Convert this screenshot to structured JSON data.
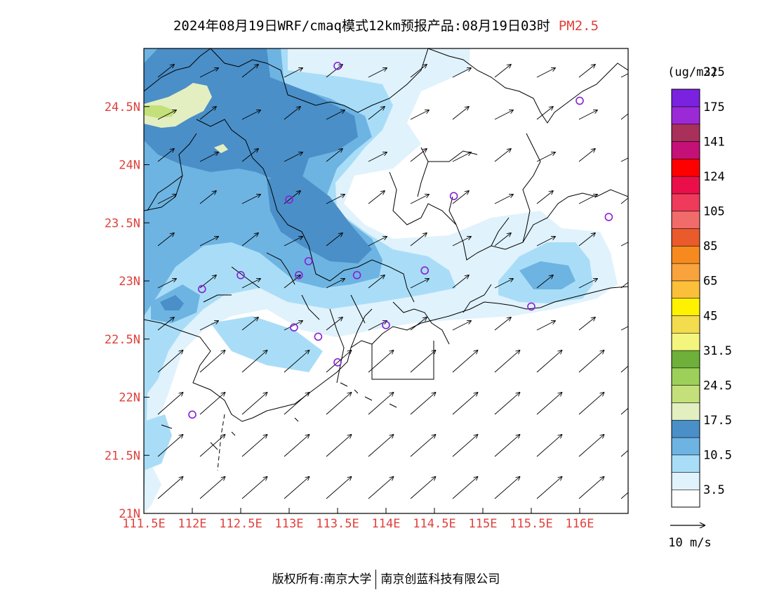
{
  "title": {
    "main": "2024年08月19日WRF/cmaq模式12km预报产品:08月19日03时",
    "variable": "PM2.5",
    "variable_color": "#e0403c"
  },
  "map": {
    "lon_range": [
      111.5,
      116.5
    ],
    "lat_range": [
      21.0,
      25.0
    ],
    "lon_ticks": [
      {
        "value": 111.5,
        "label": "111.5E"
      },
      {
        "value": 112.0,
        "label": "112E"
      },
      {
        "value": 112.5,
        "label": "112.5E"
      },
      {
        "value": 113.0,
        "label": "113E"
      },
      {
        "value": 113.5,
        "label": "113.5E"
      },
      {
        "value": 114.0,
        "label": "114E"
      },
      {
        "value": 114.5,
        "label": "114.5E"
      },
      {
        "value": 115.0,
        "label": "115E"
      },
      {
        "value": 115.5,
        "label": "115.5E"
      },
      {
        "value": 116.0,
        "label": "116E"
      }
    ],
    "lat_ticks": [
      {
        "value": 21.0,
        "label": "21N"
      },
      {
        "value": 21.5,
        "label": "21.5N"
      },
      {
        "value": 22.0,
        "label": "22N"
      },
      {
        "value": 22.5,
        "label": "22.5N"
      },
      {
        "value": 23.0,
        "label": "23N"
      },
      {
        "value": 23.5,
        "label": "23.5N"
      },
      {
        "value": 24.0,
        "label": "24N"
      },
      {
        "value": 24.5,
        "label": "24.5N"
      }
    ],
    "tick_label_color": "#e0403c",
    "stations": [
      {
        "lon": 113.5,
        "lat": 24.85
      },
      {
        "lon": 116.0,
        "lat": 24.55
      },
      {
        "lon": 114.7,
        "lat": 23.73
      },
      {
        "lon": 113.0,
        "lat": 23.7
      },
      {
        "lon": 116.3,
        "lat": 23.55
      },
      {
        "lon": 113.2,
        "lat": 23.17
      },
      {
        "lon": 112.5,
        "lat": 23.05
      },
      {
        "lon": 113.1,
        "lat": 23.05
      },
      {
        "lon": 113.7,
        "lat": 23.05
      },
      {
        "lon": 114.4,
        "lat": 23.09
      },
      {
        "lon": 112.1,
        "lat": 22.93
      },
      {
        "lon": 115.5,
        "lat": 22.78
      },
      {
        "lon": 113.05,
        "lat": 22.6
      },
      {
        "lon": 113.3,
        "lat": 22.52
      },
      {
        "lon": 114.0,
        "lat": 22.62
      },
      {
        "lon": 113.5,
        "lat": 22.3
      },
      {
        "lon": 112.0,
        "lat": 21.85
      }
    ],
    "station_color": "#8a1fd6"
  },
  "legend": {
    "unit": "(ug/m3)",
    "colors": [
      "#ffffff",
      "#e0f2fc",
      "#a9ddf7",
      "#6db4e2",
      "#4a8fc8",
      "#e3efc0",
      "#c4e07a",
      "#9dd05a",
      "#6eb03a",
      "#f4f57e",
      "#f3dc4d",
      "#fff200",
      "#fcbf3a",
      "#f9a33d",
      "#f78a1e",
      "#ea5a2a",
      "#f26b6b",
      "#ef3a5c",
      "#ea0f4a",
      "#ff0000",
      "#c51077",
      "#a8305a",
      "#9b2ad6",
      "#7a22e0"
    ],
    "labels": [
      "3.5",
      "10.5",
      "17.5",
      "24.5",
      "31.5",
      "45",
      "65",
      "85",
      "105",
      "124",
      "141",
      "175",
      "225"
    ],
    "wind_ref": "10 m/s"
  },
  "footer": {
    "left": "版权所有:南京大学",
    "right": "南京创蓝科技有限公司"
  }
}
